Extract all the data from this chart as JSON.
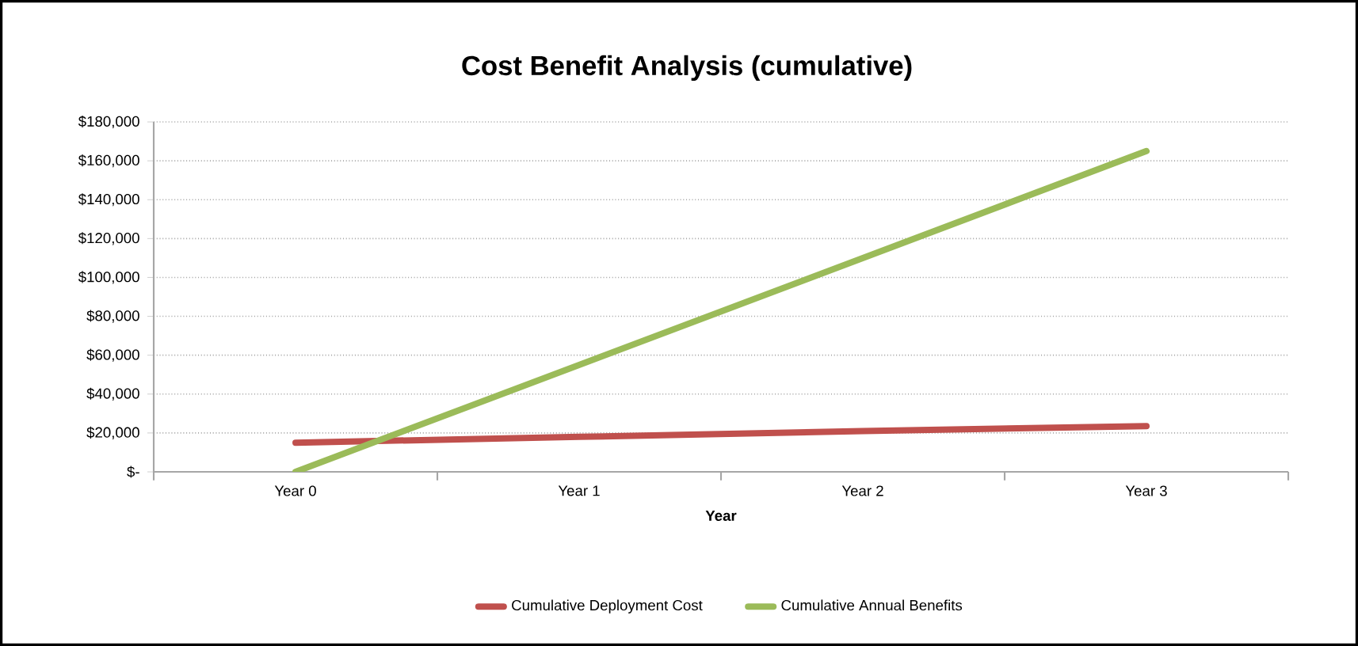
{
  "chart_data": {
    "type": "line",
    "title": "Cost Benefit Analysis (cumulative)",
    "xlabel": "Year",
    "categories": [
      "Year 0",
      "Year 1",
      "Year 2",
      "Year 3"
    ],
    "series": [
      {
        "name": "Cumulative Deployment Cost",
        "color": "#c0504d",
        "values": [
          15000,
          18000,
          21000,
          23500
        ]
      },
      {
        "name": "Cumulative Annual Benefits",
        "color": "#9bbb59",
        "values": [
          0,
          55000,
          110000,
          165000
        ]
      }
    ],
    "ylim": [
      0,
      180000
    ],
    "yticks": [
      {
        "value": 0,
        "label": "$-"
      },
      {
        "value": 20000,
        "label": "$20,000"
      },
      {
        "value": 40000,
        "label": "$40,000"
      },
      {
        "value": 60000,
        "label": "$60,000"
      },
      {
        "value": 80000,
        "label": "$80,000"
      },
      {
        "value": 100000,
        "label": "$100,000"
      },
      {
        "value": 120000,
        "label": "$120,000"
      },
      {
        "value": 140000,
        "label": "$140,000"
      },
      {
        "value": 160000,
        "label": "$160,000"
      },
      {
        "value": 180000,
        "label": "$180,000"
      }
    ],
    "grid": "y",
    "legend": "bottom"
  }
}
